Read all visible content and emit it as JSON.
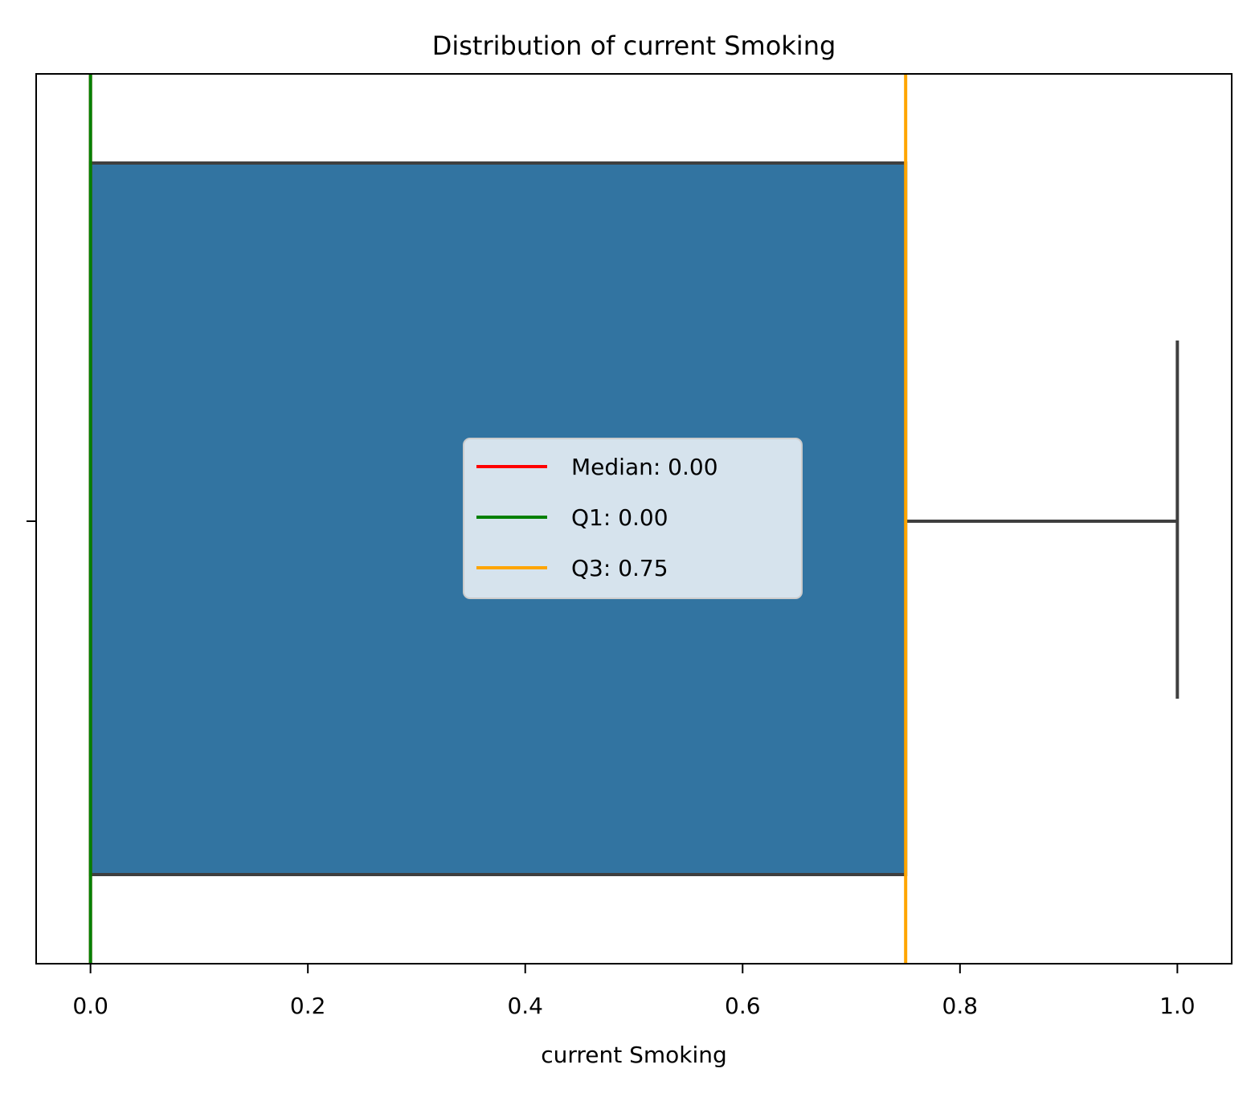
{
  "chart_data": {
    "type": "box",
    "title": "Distribution of current Smoking",
    "xlabel": "current Smoking",
    "ylabel": "",
    "xlim": [
      -0.05,
      1.05
    ],
    "x_ticks": [
      0.0,
      0.2,
      0.4,
      0.6,
      0.8,
      1.0
    ],
    "x_tick_labels": [
      "0.0",
      "0.2",
      "0.4",
      "0.6",
      "0.8",
      "1.0"
    ],
    "box": {
      "q1": 0.0,
      "median": 0.0,
      "q3": 0.75,
      "whisker_low": 0.0,
      "whisker_high": 1.0,
      "fill_color": "#3274a1",
      "edge_color": "#3f3f3f"
    },
    "reference_lines": [
      {
        "key": "median",
        "value": 0.0,
        "color": "#ff0000"
      },
      {
        "key": "q1",
        "value": 0.0,
        "color": "#008000"
      },
      {
        "key": "q3",
        "value": 0.75,
        "color": "#ffa500"
      }
    ],
    "legend": {
      "position": "center",
      "entries": [
        {
          "label": "Median: 0.00",
          "color": "#ff0000"
        },
        {
          "label": "Q1: 0.00",
          "color": "#008000"
        },
        {
          "label": "Q3: 0.75",
          "color": "#ffa500"
        }
      ]
    },
    "grid": false
  }
}
